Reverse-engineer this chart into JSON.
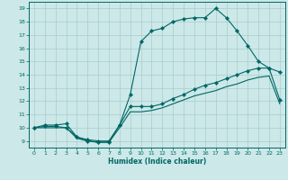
{
  "xlabel": "Humidex (Indice chaleur)",
  "bg_color": "#cce8e8",
  "grid_color": "#aacccc",
  "line_color": "#006666",
  "xlim": [
    -0.5,
    23.5
  ],
  "ylim": [
    8.5,
    19.5
  ],
  "xticks": [
    0,
    1,
    2,
    3,
    4,
    5,
    6,
    7,
    8,
    9,
    10,
    11,
    12,
    13,
    14,
    15,
    16,
    17,
    18,
    19,
    20,
    21,
    22,
    23
  ],
  "yticks": [
    9,
    10,
    11,
    12,
    13,
    14,
    15,
    16,
    17,
    18,
    19
  ],
  "upper_line": [
    10.0,
    10.2,
    10.2,
    10.3,
    9.3,
    9.0,
    8.9,
    8.9,
    10.2,
    12.5,
    16.5,
    17.3,
    17.5,
    18.0,
    18.2,
    18.3,
    18.3,
    19.0,
    18.3,
    17.3,
    16.2,
    15.0,
    14.5,
    14.2
  ],
  "mid_line": [
    10.0,
    10.1,
    10.1,
    10.0,
    9.3,
    9.1,
    9.0,
    9.0,
    10.2,
    11.6,
    11.6,
    11.6,
    11.8,
    12.2,
    12.5,
    12.9,
    13.2,
    13.4,
    13.7,
    14.0,
    14.3,
    14.5,
    14.5,
    12.1
  ],
  "low_line": [
    10.0,
    10.0,
    10.0,
    10.0,
    9.2,
    9.0,
    8.9,
    8.9,
    10.0,
    11.2,
    11.2,
    11.3,
    11.5,
    11.8,
    12.1,
    12.4,
    12.6,
    12.8,
    13.1,
    13.3,
    13.6,
    13.8,
    13.9,
    11.8
  ],
  "hours": [
    0,
    1,
    2,
    3,
    4,
    5,
    6,
    7,
    8,
    9,
    10,
    11,
    12,
    13,
    14,
    15,
    16,
    17,
    18,
    19,
    20,
    21,
    22,
    23
  ]
}
